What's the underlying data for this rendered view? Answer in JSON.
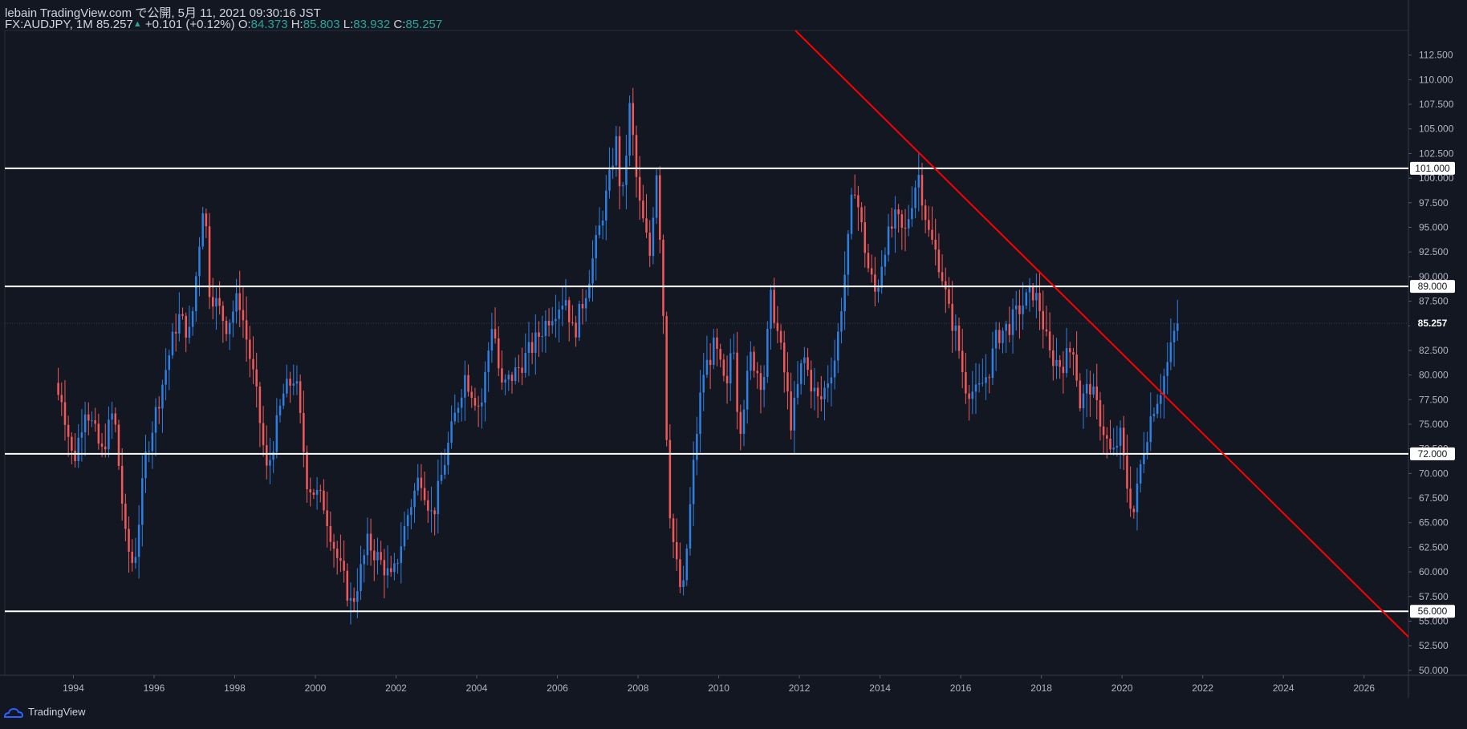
{
  "header": {
    "publish_line": "lebain TradingView.com で公開, 5月 11, 2021 09:30:16 JST",
    "symbol": "FX:AUDJPY, 1M",
    "last": "85.257",
    "change": "+0.101 (+0.12%)",
    "o_label": "O:",
    "o_value": "84.373",
    "h_label": "H:",
    "h_value": "85.803",
    "l_label": "L:",
    "l_value": "83.932",
    "c_label": "C:",
    "c_value": "85.257"
  },
  "footer": {
    "brand": "TradingView"
  },
  "colors": {
    "background": "#131722",
    "up": "#2f7fe0",
    "down": "#f05a5a",
    "trendline": "#ff0000",
    "level_line": "#ffffff",
    "axis_text": "#b2b5be"
  },
  "chart_data": {
    "type": "candlestick",
    "symbol": "AUDJPY",
    "timeframe": "1M",
    "x_range": [
      1992.3,
      2027.1
    ],
    "y_range": [
      49.5,
      115.0
    ],
    "x_ticks": [
      "1994",
      "1996",
      "1998",
      "2000",
      "2002",
      "2004",
      "2006",
      "2008",
      "2010",
      "2012",
      "2014",
      "2016",
      "2018",
      "2020",
      "2022",
      "2024",
      "2026"
    ],
    "y_ticks": [
      "112.500",
      "110.000",
      "107.500",
      "105.000",
      "102.500",
      "100.000",
      "97.500",
      "95.000",
      "92.500",
      "90.000",
      "87.500",
      "85.000",
      "82.500",
      "80.000",
      "77.500",
      "75.000",
      "72.500",
      "70.000",
      "67.500",
      "65.000",
      "62.500",
      "60.000",
      "57.500",
      "55.000",
      "52.500",
      "50.000"
    ],
    "horizontal_levels": [
      {
        "value": 101.0,
        "label": "101.000"
      },
      {
        "value": 89.0,
        "label": "89.000"
      },
      {
        "value": 72.0,
        "label": "72.000"
      },
      {
        "value": 56.0,
        "label": "56.000"
      }
    ],
    "last_price": {
      "value": 85.257,
      "label": "85.257"
    },
    "trendline": {
      "points": [
        [
          2011.9,
          115.0
        ],
        [
          2027.1,
          53.4
        ]
      ]
    },
    "close_anchors": [
      [
        1993.7,
        78.0
      ],
      [
        1994.0,
        71.0
      ],
      [
        1994.3,
        77.0
      ],
      [
        1994.7,
        72.0
      ],
      [
        1995.0,
        76.5
      ],
      [
        1995.3,
        63.0
      ],
      [
        1995.5,
        60.5
      ],
      [
        1995.8,
        72.0
      ],
      [
        1996.2,
        79.0
      ],
      [
        1996.6,
        86.0
      ],
      [
        1996.9,
        84.0
      ],
      [
        1997.25,
        99.0
      ],
      [
        1997.35,
        89.0
      ],
      [
        1997.8,
        85.0
      ],
      [
        1998.1,
        88.0
      ],
      [
        1998.5,
        79.0
      ],
      [
        1998.8,
        70.0
      ],
      [
        1999.2,
        78.0
      ],
      [
        1999.5,
        80.0
      ],
      [
        1999.8,
        69.0
      ],
      [
        2000.2,
        67.0
      ],
      [
        2000.5,
        62.0
      ],
      [
        2000.9,
        56.5
      ],
      [
        2001.3,
        63.0
      ],
      [
        2001.7,
        60.5
      ],
      [
        2001.9,
        59.0
      ],
      [
        2002.3,
        66.0
      ],
      [
        2002.6,
        70.0
      ],
      [
        2002.9,
        65.5
      ],
      [
        2003.3,
        73.0
      ],
      [
        2003.7,
        80.0
      ],
      [
        2004.1,
        76.5
      ],
      [
        2004.4,
        86.0
      ],
      [
        2004.6,
        78.5
      ],
      [
        2005.0,
        80.5
      ],
      [
        2005.4,
        83.0
      ],
      [
        2005.8,
        86.0
      ],
      [
        2006.2,
        88.0
      ],
      [
        2006.4,
        84.0
      ],
      [
        2006.7,
        88.5
      ],
      [
        2007.0,
        94.0
      ],
      [
        2007.3,
        100.0
      ],
      [
        2007.45,
        104.0
      ],
      [
        2007.6,
        97.0
      ],
      [
        2007.8,
        107.5
      ],
      [
        2008.0,
        98.0
      ],
      [
        2008.3,
        92.0
      ],
      [
        2008.45,
        101.5
      ],
      [
        2008.6,
        90.0
      ],
      [
        2008.75,
        68.0
      ],
      [
        2008.9,
        62.0
      ],
      [
        2009.1,
        57.0
      ],
      [
        2009.4,
        72.0
      ],
      [
        2009.6,
        80.0
      ],
      [
        2009.9,
        83.0
      ],
      [
        2010.2,
        78.0
      ],
      [
        2010.35,
        85.0
      ],
      [
        2010.5,
        74.0
      ],
      [
        2010.8,
        82.0
      ],
      [
        2011.1,
        79.0
      ],
      [
        2011.3,
        88.0
      ],
      [
        2011.6,
        81.0
      ],
      [
        2011.8,
        75.0
      ],
      [
        2012.1,
        82.0
      ],
      [
        2012.3,
        79.0
      ],
      [
        2012.5,
        77.0
      ],
      [
        2012.9,
        82.0
      ],
      [
        2013.2,
        93.0
      ],
      [
        2013.35,
        100.0
      ],
      [
        2013.5,
        96.0
      ],
      [
        2013.7,
        91.0
      ],
      [
        2013.9,
        88.0
      ],
      [
        2014.1,
        93.0
      ],
      [
        2014.4,
        96.0
      ],
      [
        2014.6,
        94.0
      ],
      [
        2014.85,
        99.0
      ],
      [
        2014.95,
        100.5
      ],
      [
        2015.2,
        94.5
      ],
      [
        2015.5,
        91.0
      ],
      [
        2015.7,
        86.5
      ],
      [
        2015.9,
        84.0
      ],
      [
        2016.1,
        79.0
      ],
      [
        2016.4,
        78.0
      ],
      [
        2016.7,
        80.5
      ],
      [
        2016.9,
        84.0
      ],
      [
        2017.2,
        85.0
      ],
      [
        2017.5,
        87.0
      ],
      [
        2017.8,
        88.5
      ],
      [
        2017.95,
        87.0
      ],
      [
        2018.2,
        82.0
      ],
      [
        2018.5,
        81.0
      ],
      [
        2018.8,
        83.0
      ],
      [
        2018.95,
        77.0
      ],
      [
        2019.2,
        79.0
      ],
      [
        2019.5,
        75.0
      ],
      [
        2019.75,
        71.5
      ],
      [
        2019.95,
        74.0
      ],
      [
        2020.15,
        68.0
      ],
      [
        2020.3,
        66.0
      ],
      [
        2020.5,
        72.0
      ],
      [
        2020.75,
        76.5
      ],
      [
        2020.95,
        78.5
      ],
      [
        2021.15,
        81.5
      ],
      [
        2021.35,
        85.257
      ]
    ]
  }
}
